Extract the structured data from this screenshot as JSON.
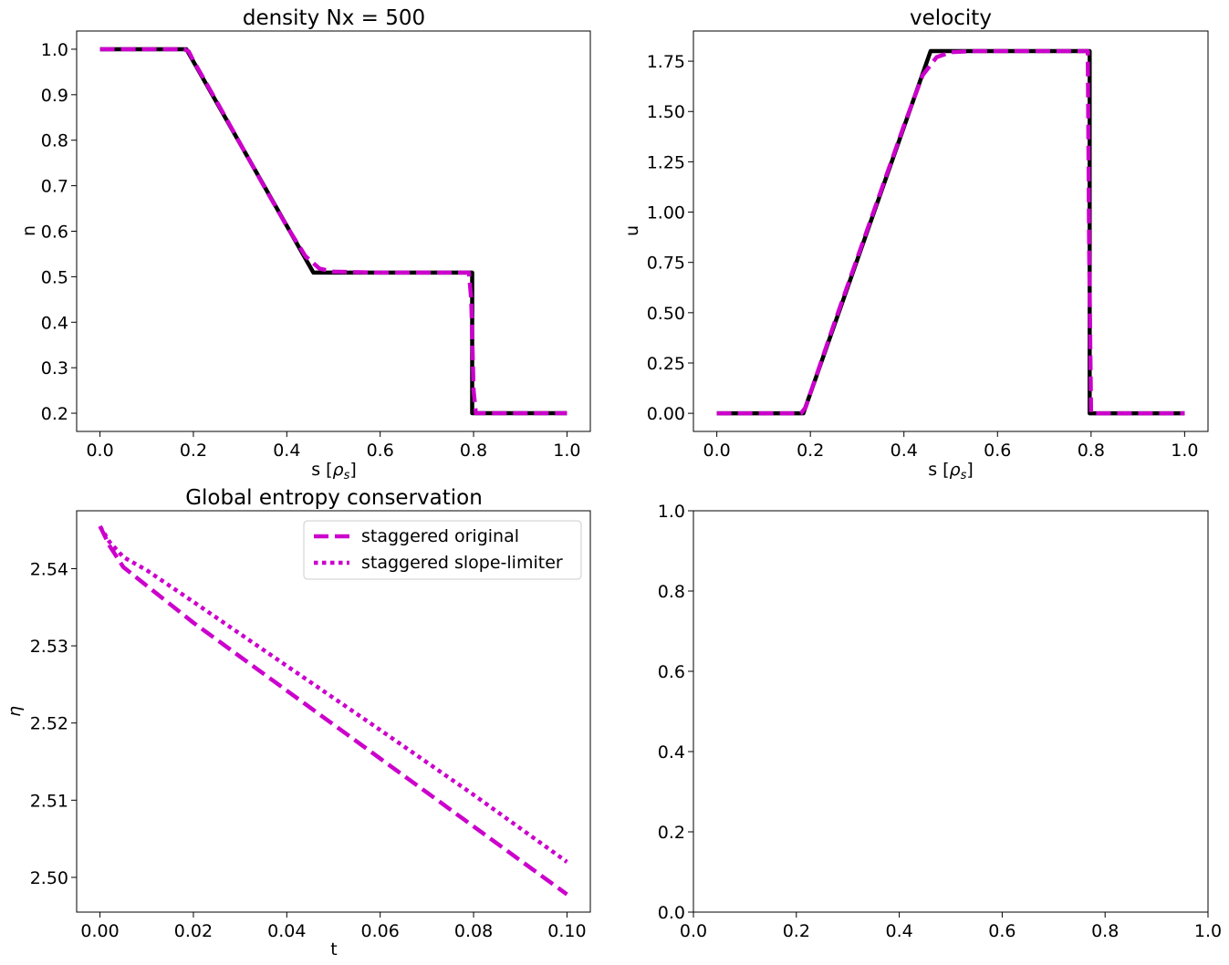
{
  "colors": {
    "exact": "#000000",
    "numeric": "#cc00cc",
    "axes": "#000000",
    "background": "#ffffff"
  },
  "chart_data": [
    {
      "type": "line",
      "title": "density Nx = 500",
      "xlabel": "s [",
      "xlabel_symbol": "ρ",
      "xlabel_sub": "s",
      "xlabel_close": "]",
      "ylabel": "n",
      "xlim": [
        -0.05,
        1.05
      ],
      "ylim": [
        0.16,
        1.04
      ],
      "xticks": [
        0.0,
        0.2,
        0.4,
        0.6,
        0.8,
        1.0
      ],
      "xtick_labels": [
        "0.0",
        "0.2",
        "0.4",
        "0.6",
        "0.8",
        "1.0"
      ],
      "yticks": [
        0.2,
        0.3,
        0.4,
        0.5,
        0.6,
        0.7,
        0.8,
        0.9,
        1.0
      ],
      "ytick_labels": [
        "0.2",
        "0.3",
        "0.4",
        "0.5",
        "0.6",
        "0.7",
        "0.8",
        "0.9",
        "1.0"
      ],
      "series": [
        {
          "style": "solid",
          "color": "#000000",
          "x": [
            0.0,
            0.185,
            0.457,
            0.797,
            0.797,
            1.0
          ],
          "y": [
            1.0,
            1.0,
            0.509,
            0.509,
            0.2,
            0.2
          ]
        },
        {
          "style": "dashed",
          "color": "#cc00cc",
          "x": [
            0.0,
            0.18,
            0.19,
            0.2,
            0.25,
            0.3,
            0.35,
            0.4,
            0.44,
            0.47,
            0.5,
            0.55,
            0.6,
            0.7,
            0.79,
            0.795,
            0.8,
            0.805,
            0.85,
            0.9,
            1.0
          ],
          "y": [
            1.0,
            1.0,
            0.995,
            0.975,
            0.885,
            0.793,
            0.701,
            0.611,
            0.545,
            0.518,
            0.511,
            0.51,
            0.509,
            0.509,
            0.509,
            0.45,
            0.25,
            0.2,
            0.2,
            0.2,
            0.2
          ]
        }
      ]
    },
    {
      "type": "line",
      "title": "velocity",
      "xlabel": "s [",
      "xlabel_symbol": "ρ",
      "xlabel_sub": "s",
      "xlabel_close": "]",
      "ylabel": "u",
      "xlim": [
        -0.05,
        1.05
      ],
      "ylim": [
        -0.09,
        1.9
      ],
      "xticks": [
        0.0,
        0.2,
        0.4,
        0.6,
        0.8,
        1.0
      ],
      "xtick_labels": [
        "0.0",
        "0.2",
        "0.4",
        "0.6",
        "0.8",
        "1.0"
      ],
      "yticks": [
        0.0,
        0.25,
        0.5,
        0.75,
        1.0,
        1.25,
        1.5,
        1.75
      ],
      "ytick_labels": [
        "0.00",
        "0.25",
        "0.50",
        "0.75",
        "1.00",
        "1.25",
        "1.50",
        "1.75"
      ],
      "series": [
        {
          "style": "solid",
          "color": "#000000",
          "x": [
            0.0,
            0.185,
            0.457,
            0.797,
            0.797,
            1.0
          ],
          "y": [
            0.0,
            0.0,
            1.8,
            1.8,
            0.0,
            0.0
          ]
        },
        {
          "style": "dashed",
          "color": "#cc00cc",
          "x": [
            0.0,
            0.18,
            0.19,
            0.2,
            0.25,
            0.3,
            0.35,
            0.4,
            0.44,
            0.47,
            0.5,
            0.55,
            0.6,
            0.7,
            0.79,
            0.793,
            0.796,
            0.8,
            0.85,
            0.9,
            1.0
          ],
          "y": [
            0.0,
            0.0,
            0.03,
            0.1,
            0.44,
            0.77,
            1.1,
            1.43,
            1.68,
            1.77,
            1.795,
            1.8,
            1.8,
            1.8,
            1.8,
            1.8,
            0.8,
            0.0,
            0.0,
            0.0,
            0.0
          ]
        }
      ]
    },
    {
      "type": "line",
      "title": "Global entropy conservation",
      "xlabel": "t",
      "ylabel": "η",
      "xlim": [
        -0.005,
        0.105
      ],
      "ylim": [
        2.4955,
        2.5475
      ],
      "xticks": [
        0.0,
        0.02,
        0.04,
        0.06,
        0.08,
        0.1
      ],
      "xtick_labels": [
        "0.00",
        "0.02",
        "0.04",
        "0.06",
        "0.08",
        "0.10"
      ],
      "yticks": [
        2.5,
        2.51,
        2.52,
        2.53,
        2.54
      ],
      "ytick_labels": [
        "2.50",
        "2.51",
        "2.52",
        "2.53",
        "2.54"
      ],
      "legend": "top-right",
      "series": [
        {
          "name": "staggered original",
          "style": "dashed",
          "color": "#cc00cc",
          "x": [
            0.0,
            0.002,
            0.005,
            0.01,
            0.02,
            0.04,
            0.06,
            0.08,
            0.1
          ],
          "y": [
            2.5455,
            2.543,
            2.5402,
            2.5378,
            2.533,
            2.5242,
            2.5154,
            2.5066,
            2.4978
          ]
        },
        {
          "name": "staggered slope-limiter",
          "style": "dotted",
          "color": "#cc00cc",
          "x": [
            0.0,
            0.002,
            0.005,
            0.01,
            0.02,
            0.04,
            0.06,
            0.08,
            0.1
          ],
          "y": [
            2.5455,
            2.5435,
            2.5415,
            2.5398,
            2.5357,
            2.5274,
            2.5191,
            2.5107,
            2.502
          ]
        }
      ]
    },
    {
      "type": "line",
      "title": "",
      "xlabel": "",
      "ylabel": "",
      "xlim": [
        0.0,
        1.0
      ],
      "ylim": [
        0.0,
        1.0
      ],
      "xticks": [
        0.0,
        0.2,
        0.4,
        0.6,
        0.8,
        1.0
      ],
      "xtick_labels": [
        "0.0",
        "0.2",
        "0.4",
        "0.6",
        "0.8",
        "1.0"
      ],
      "yticks": [
        0.0,
        0.2,
        0.4,
        0.6,
        0.8,
        1.0
      ],
      "ytick_labels": [
        "0.0",
        "0.2",
        "0.4",
        "0.6",
        "0.8",
        "1.0"
      ],
      "series": []
    }
  ]
}
